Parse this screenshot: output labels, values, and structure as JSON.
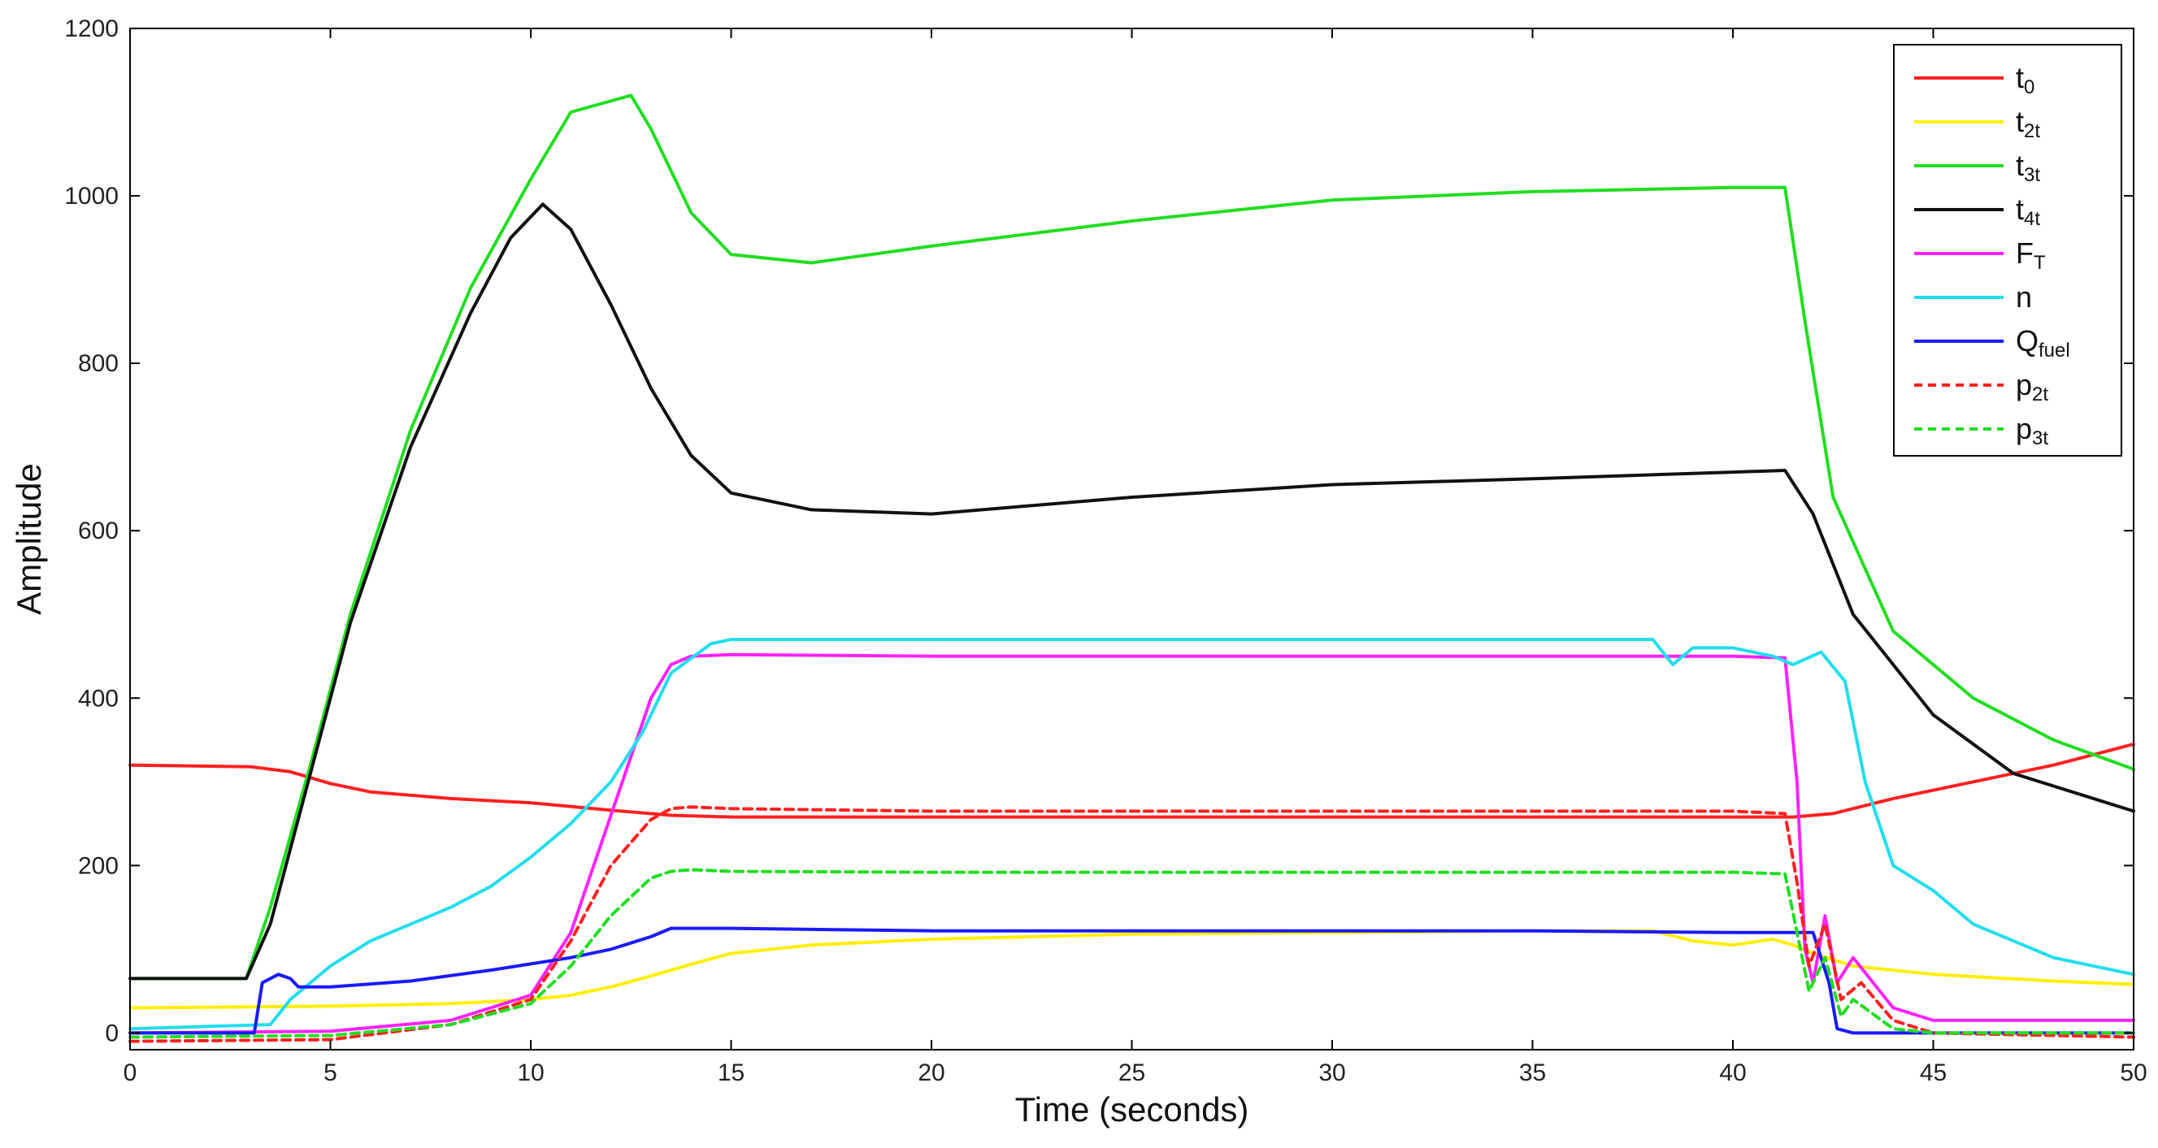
{
  "chart_data": {
    "type": "line",
    "title": "",
    "xlabel": "Time (seconds)",
    "ylabel": "Amplitude",
    "xlim": [
      0,
      50
    ],
    "ylim": [
      -20,
      1200
    ],
    "xticks": [
      0,
      5,
      10,
      15,
      20,
      25,
      30,
      35,
      40,
      45,
      50
    ],
    "yticks": [
      0,
      200,
      400,
      600,
      800,
      1000,
      1200
    ],
    "grid": false,
    "legend_position": "top-right",
    "series": [
      {
        "name": "t0",
        "label_main": "t",
        "label_sub": "0",
        "color": "#ff2020",
        "dashed": false,
        "x": [
          0,
          3,
          4,
          5,
          6,
          8,
          10,
          12,
          13.5,
          15,
          20,
          25,
          30,
          35,
          40,
          41.5,
          42.5,
          44,
          46,
          48,
          50
        ],
        "y": [
          320,
          318,
          312,
          298,
          288,
          280,
          275,
          266,
          260,
          258,
          258,
          258,
          258,
          258,
          258,
          258,
          262,
          280,
          300,
          320,
          345
        ]
      },
      {
        "name": "t2t",
        "label_main": "t",
        "label_sub": "2t",
        "color": "#ffee00",
        "dashed": false,
        "x": [
          0,
          5,
          8,
          10,
          11,
          12,
          13,
          14,
          15,
          17,
          20,
          25,
          30,
          35,
          38,
          39,
          40,
          41,
          41.5,
          42,
          43,
          45,
          48,
          50
        ],
        "y": [
          30,
          32,
          35,
          40,
          45,
          55,
          68,
          82,
          95,
          105,
          112,
          118,
          120,
          122,
          122,
          110,
          105,
          112,
          105,
          95,
          80,
          70,
          62,
          58
        ]
      },
      {
        "name": "t3t",
        "label_main": "t",
        "label_sub": "3t",
        "color": "#22dd22",
        "dashed": false,
        "x": [
          0,
          2.9,
          3.5,
          4.5,
          5.5,
          7,
          8.5,
          10,
          11,
          12.5,
          13,
          14,
          15,
          17,
          20,
          25,
          30,
          35,
          40,
          41.3,
          41.8,
          42.5,
          44,
          46,
          48,
          50
        ],
        "y": [
          65,
          65,
          150,
          320,
          500,
          720,
          890,
          1020,
          1100,
          1120,
          1080,
          980,
          930,
          920,
          940,
          970,
          995,
          1005,
          1010,
          1010,
          850,
          640,
          480,
          400,
          350,
          315
        ]
      },
      {
        "name": "t4t",
        "label_main": "t",
        "label_sub": "4t",
        "color": "#111111",
        "dashed": false,
        "x": [
          0,
          2.9,
          3.5,
          4.5,
          5.5,
          7,
          8.5,
          9.5,
          10.3,
          11,
          12,
          13,
          14,
          15,
          17,
          20,
          25,
          30,
          35,
          40,
          41.3,
          42,
          43,
          45,
          47,
          50
        ],
        "y": [
          65,
          65,
          130,
          310,
          490,
          700,
          860,
          950,
          990,
          960,
          870,
          770,
          690,
          645,
          625,
          620,
          640,
          655,
          662,
          670,
          672,
          620,
          500,
          380,
          310,
          265
        ]
      },
      {
        "name": "FT",
        "label_main": "F",
        "label_sub": "T",
        "color": "#ff22ff",
        "dashed": false,
        "x": [
          0,
          5,
          8,
          10,
          11,
          12,
          13,
          13.5,
          14,
          15,
          20,
          25,
          30,
          35,
          40,
          41.3,
          41.6,
          41.8,
          42,
          42.3,
          42.6,
          43,
          44,
          45,
          50
        ],
        "y": [
          0,
          2,
          15,
          45,
          120,
          260,
          400,
          440,
          450,
          452,
          450,
          450,
          450,
          450,
          450,
          448,
          300,
          100,
          60,
          140,
          60,
          90,
          30,
          15,
          15
        ]
      },
      {
        "name": "n",
        "label_main": "n",
        "label_sub": "",
        "color": "#22ddee",
        "dashed": false,
        "x": [
          0,
          3.5,
          4,
          5,
          6,
          7,
          8,
          9,
          10,
          11,
          12,
          12.8,
          13.5,
          14.5,
          15,
          20,
          25,
          30,
          35,
          38,
          38.5,
          39,
          40,
          41,
          41.5,
          42.2,
          42.8,
          43.3,
          44,
          45,
          46,
          48,
          50
        ],
        "y": [
          5,
          10,
          40,
          80,
          110,
          130,
          150,
          175,
          210,
          250,
          300,
          360,
          430,
          465,
          470,
          470,
          470,
          470,
          470,
          470,
          440,
          460,
          460,
          450,
          440,
          455,
          420,
          300,
          200,
          170,
          130,
          90,
          70
        ]
      },
      {
        "name": "Qfuel",
        "label_main": "Q",
        "label_sub": "fuel",
        "color": "#1a1aff",
        "dashed": false,
        "x": [
          0,
          3.1,
          3.3,
          3.7,
          4,
          4.2,
          5,
          7,
          9,
          11,
          12,
          13,
          13.5,
          15,
          20,
          25,
          30,
          35,
          40,
          42,
          42.4,
          42.6,
          43,
          50
        ],
        "y": [
          0,
          0,
          60,
          70,
          65,
          55,
          55,
          62,
          75,
          90,
          100,
          115,
          125,
          125,
          122,
          122,
          122,
          122,
          120,
          120,
          60,
          5,
          0,
          0
        ]
      },
      {
        "name": "p2t",
        "label_main": "p",
        "label_sub": "2t",
        "color": "#ff2020",
        "dashed": true,
        "x": [
          0,
          5,
          8,
          10,
          11,
          12,
          13,
          13.5,
          14,
          15,
          20,
          25,
          30,
          35,
          40,
          41.3,
          41.6,
          41.9,
          42.3,
          42.7,
          43.2,
          44,
          45,
          50
        ],
        "y": [
          -10,
          -8,
          10,
          40,
          110,
          200,
          255,
          268,
          270,
          268,
          265,
          265,
          265,
          265,
          265,
          262,
          180,
          80,
          130,
          40,
          60,
          15,
          0,
          -5
        ]
      },
      {
        "name": "p3t",
        "label_main": "p",
        "label_sub": "3t",
        "color": "#22dd22",
        "dashed": true,
        "x": [
          0,
          5,
          8,
          10,
          11,
          12,
          13,
          13.5,
          14,
          15,
          20,
          25,
          30,
          35,
          40,
          41.3,
          41.6,
          41.9,
          42.3,
          42.7,
          43,
          44,
          45,
          50
        ],
        "y": [
          -5,
          -3,
          10,
          35,
          80,
          140,
          185,
          193,
          195,
          193,
          192,
          192,
          192,
          192,
          192,
          190,
          120,
          50,
          90,
          20,
          40,
          5,
          0,
          0
        ]
      }
    ]
  }
}
